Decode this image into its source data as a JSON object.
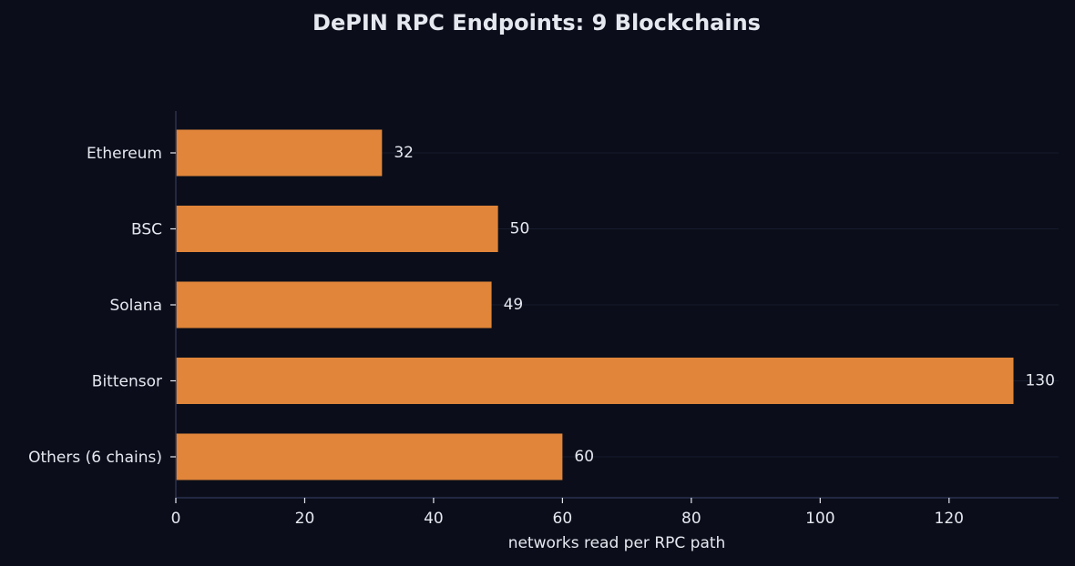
{
  "chart_data": {
    "type": "bar",
    "orientation": "horizontal",
    "title": "DePIN RPC Endpoints: 9 Blockchains",
    "xlabel": "networks read per RPC path",
    "ylabel": "",
    "categories": [
      "Ethereum",
      "BSC",
      "Solana",
      "Bittensor",
      "Others (6 chains)"
    ],
    "values": [
      32,
      50,
      49,
      130,
      60
    ],
    "value_labels": [
      "32",
      "50",
      "49",
      "130",
      "60"
    ],
    "xlim": [
      0,
      137
    ],
    "xticks": [
      0,
      20,
      40,
      60,
      80,
      100,
      120
    ],
    "xtick_labels": [
      "0",
      "20",
      "40",
      "60",
      "80",
      "100",
      "120"
    ],
    "grid": "horizontal lines at categories",
    "legend": "none"
  },
  "colors": {
    "background": "#0b0e1a",
    "bar": "#e08539",
    "text": "#e6e8f0",
    "axis": "#2a3150",
    "grid": "#161b2c"
  }
}
